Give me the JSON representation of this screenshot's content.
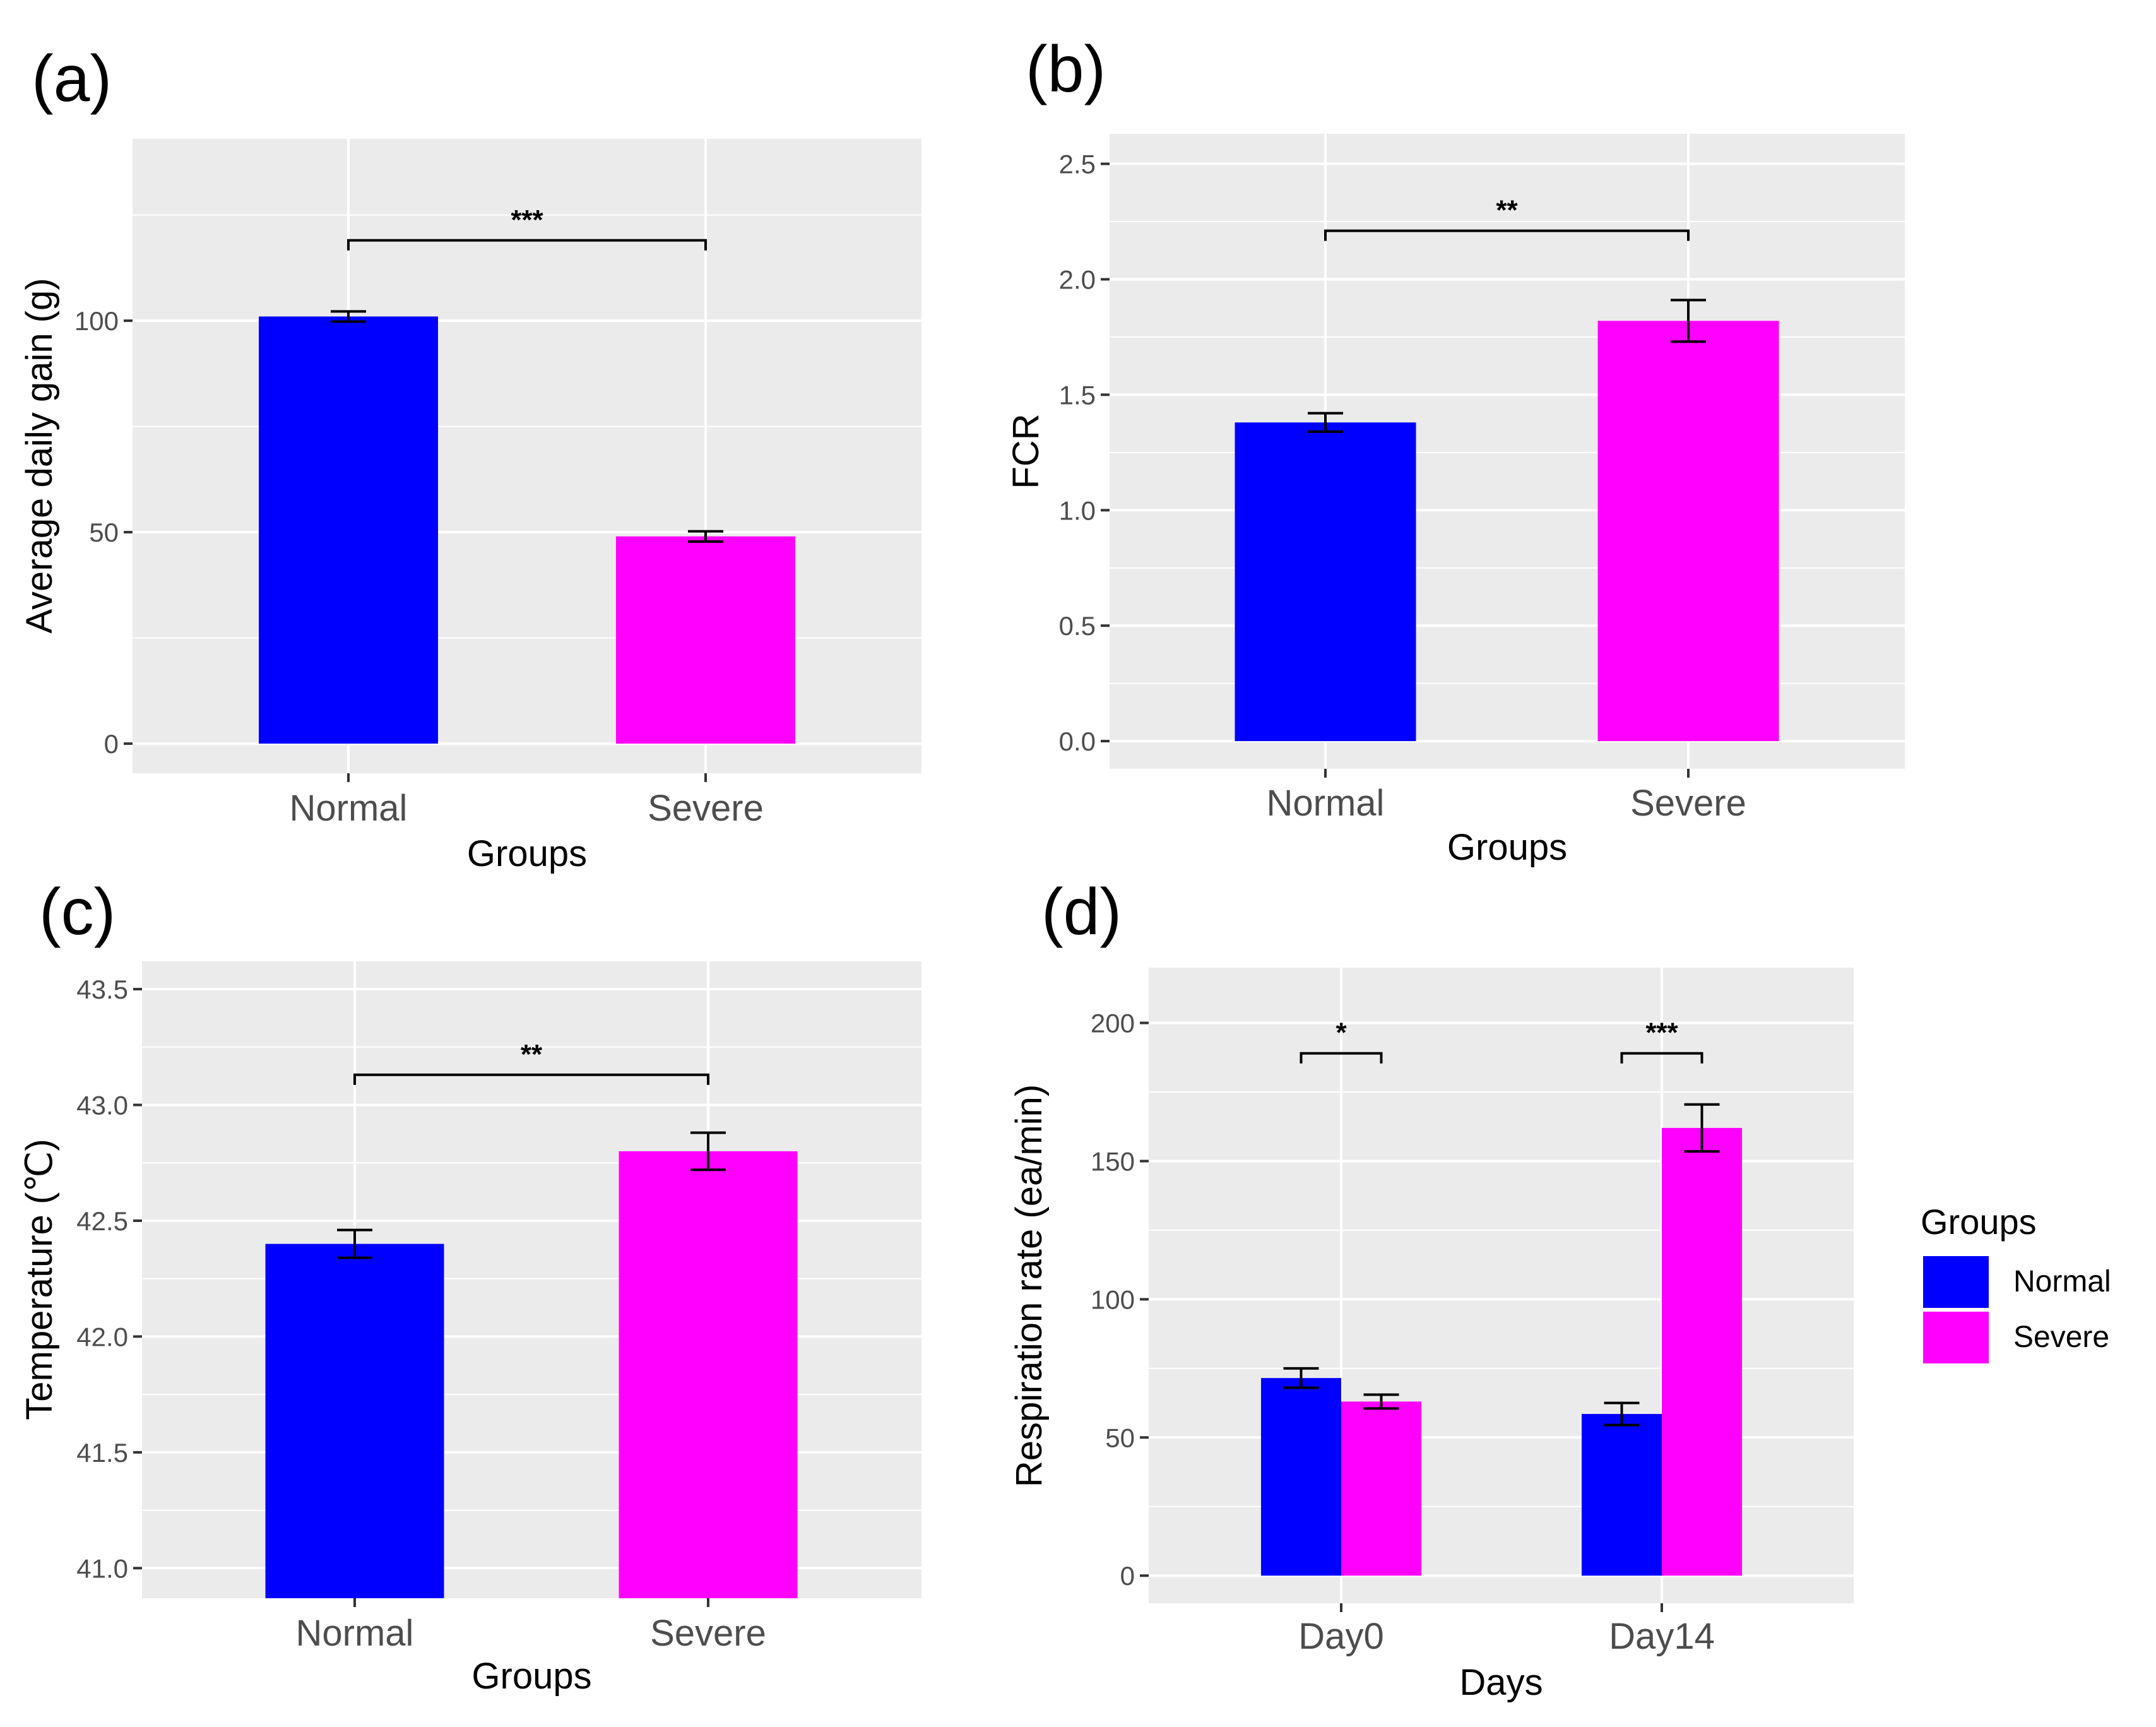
{
  "colors": {
    "normal": "#0000FF",
    "severe": "#FF00FF",
    "panel_bg": "#EBEBEB",
    "grid": "#FFFFFF"
  },
  "chart_data": [
    {
      "panel": "(a)",
      "type": "bar",
      "categories": [
        "Normal",
        "Severe"
      ],
      "values": [
        101,
        49
      ],
      "errors": [
        1.2,
        1.2
      ],
      "ylim": [
        -7,
        143
      ],
      "yticks": [
        "0",
        "50",
        "100"
      ],
      "ytick_values": [
        0,
        50,
        100
      ],
      "xlabel": "Groups",
      "ylabel": "Average daily gain (g)",
      "significance": "***",
      "sig_y": 119,
      "grid": true
    },
    {
      "panel": "(b)",
      "type": "bar",
      "categories": [
        "Normal",
        "Severe"
      ],
      "values": [
        1.38,
        1.82
      ],
      "errors": [
        0.04,
        0.09
      ],
      "ylim": [
        -0.12,
        2.63
      ],
      "yticks": [
        "0.0",
        "0.5",
        "1.0",
        "1.5",
        "2.0",
        "2.5"
      ],
      "ytick_values": [
        0,
        0.5,
        1.0,
        1.5,
        2.0,
        2.5
      ],
      "xlabel": "Groups",
      "ylabel": "FCR",
      "significance": "**",
      "sig_y": 2.21,
      "grid": true
    },
    {
      "panel": "(c)",
      "type": "bar",
      "categories": [
        "Normal",
        "Severe"
      ],
      "values": [
        42.4,
        42.8
      ],
      "errors": [
        0.06,
        0.08
      ],
      "ylim": [
        40.87,
        43.62
      ],
      "bar_base": 40.87,
      "yticks": [
        "41.0",
        "41.5",
        "42.0",
        "42.5",
        "43.0",
        "43.5"
      ],
      "ytick_values": [
        41.0,
        41.5,
        42.0,
        42.5,
        43.0,
        43.5
      ],
      "xlabel": "Groups",
      "ylabel": "Temperature (℃)",
      "significance": "**",
      "sig_y": 43.13,
      "grid": true
    },
    {
      "panel": "(d)",
      "type": "bar",
      "categories": [
        "Day0",
        "Day14"
      ],
      "series": [
        {
          "name": "Normal",
          "values": [
            71.5,
            58.5
          ],
          "errors": [
            3.5,
            4
          ]
        },
        {
          "name": "Severe",
          "values": [
            63,
            162
          ],
          "errors": [
            2.5,
            8.5
          ]
        }
      ],
      "ylim": [
        -10,
        220
      ],
      "yticks": [
        "0",
        "50",
        "100",
        "150",
        "200"
      ],
      "ytick_values": [
        0,
        50,
        100,
        150,
        200
      ],
      "xlabel": "Days",
      "ylabel": "Respiration rate (ea/min)",
      "significance": [
        "*",
        "***"
      ],
      "sig_y": [
        189,
        189
      ],
      "legend_title": "Groups",
      "legend": [
        "Normal",
        "Severe"
      ],
      "legend_position": "right",
      "grid": true
    }
  ]
}
